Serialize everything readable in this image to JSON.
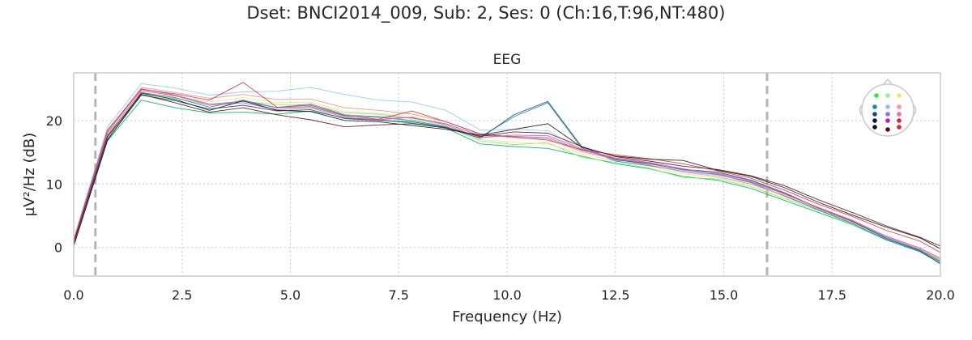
{
  "figure": {
    "suptitle": "Dset: BNCI2014_009, Sub: 2, Ses: 0 (Ch:16,T:96,NT:480)"
  },
  "chart_data": {
    "type": "line",
    "title": "EEG",
    "xlabel": "Frequency (Hz)",
    "ylabel": "µV²/Hz (dB)",
    "xlim": [
      0,
      20
    ],
    "ylim": [
      -4.5,
      27.5
    ],
    "xticks": [
      0,
      2.5,
      5,
      7.5,
      10,
      12.5,
      15,
      17.5,
      20
    ],
    "xtick_labels": [
      "0.0",
      "2.5",
      "5.0",
      "7.5",
      "10.0",
      "12.5",
      "15.0",
      "17.5",
      "20.0"
    ],
    "yticks": [
      0,
      10,
      20
    ],
    "ytick_labels": [
      "0",
      "10",
      "20"
    ],
    "grid": true,
    "vlines": [
      0.5,
      16
    ],
    "legend": "sensor-location inset, top-right",
    "x": [
      0,
      0.78,
      1.56,
      2.34,
      3.13,
      3.91,
      4.69,
      5.47,
      6.25,
      7.03,
      7.81,
      8.59,
      9.38,
      10.16,
      10.94,
      11.72,
      12.5,
      13.28,
      14.06,
      14.84,
      15.63,
      16.41,
      17.19,
      17.97,
      18.75,
      19.53,
      20
    ],
    "series": [
      {
        "color": "#00b050",
        "values": [
          0.3,
          16.8,
          23.2,
          22.0,
          21.2,
          21.3,
          21.0,
          21.5,
          20.4,
          20.1,
          19.6,
          18.8,
          16.3,
          15.9,
          15.6,
          14.4,
          13.2,
          12.4,
          11.2,
          10.6,
          9.3,
          7.4,
          5.5,
          3.6,
          1.2,
          -0.6,
          -2.3
        ]
      },
      {
        "color": "#7ae87a",
        "values": [
          0.9,
          17.6,
          24.1,
          23.5,
          22.4,
          23.0,
          22.5,
          22.5,
          21.2,
          21.0,
          20.3,
          19.1,
          16.8,
          16.2,
          16.5,
          14.2,
          13.4,
          12.5,
          11.0,
          10.8,
          9.6,
          7.7,
          5.8,
          3.7,
          1.3,
          -0.4,
          -2.1
        ]
      },
      {
        "color": "#e8e86a",
        "values": [
          1.2,
          17.9,
          24.3,
          23.8,
          22.9,
          23.6,
          22.8,
          22.9,
          21.4,
          21.1,
          20.6,
          19.4,
          17.0,
          16.6,
          16.3,
          14.8,
          13.6,
          12.8,
          11.6,
          11.0,
          9.9,
          8.0,
          6.0,
          3.9,
          1.5,
          -0.2,
          -1.9
        ]
      },
      {
        "color": "#1a8aa0",
        "values": [
          0.6,
          17.3,
          24.4,
          23.6,
          22.1,
          23.2,
          22.0,
          22.2,
          20.7,
          20.5,
          20.0,
          19.0,
          17.4,
          20.6,
          22.8,
          15.7,
          13.6,
          12.9,
          12.0,
          11.5,
          10.2,
          8.1,
          5.9,
          3.8,
          1.2,
          -0.7,
          -2.5
        ]
      },
      {
        "color": "#8fc8f0",
        "values": [
          1.4,
          19.0,
          25.8,
          25.1,
          24.0,
          24.5,
          24.6,
          25.2,
          24.1,
          23.2,
          22.9,
          21.6,
          18.5,
          18.6,
          18.4,
          15.4,
          14.0,
          13.2,
          12.0,
          11.4,
          10.4,
          8.4,
          6.3,
          4.1,
          1.7,
          -0.1,
          -1.8
        ]
      },
      {
        "color": "#f08c8c",
        "values": [
          1.0,
          18.3,
          25.2,
          24.4,
          23.5,
          24.1,
          23.3,
          23.4,
          22.0,
          21.6,
          21.0,
          19.8,
          17.8,
          17.3,
          17.1,
          15.1,
          13.9,
          13.0,
          11.9,
          11.2,
          10.0,
          8.2,
          6.1,
          4.0,
          1.6,
          -0.3,
          -2.0
        ]
      },
      {
        "color": "#154a80",
        "values": [
          0.5,
          17.0,
          24.0,
          23.1,
          21.8,
          22.4,
          21.5,
          21.7,
          20.3,
          20.0,
          19.8,
          18.9,
          17.2,
          20.9,
          23.0,
          15.9,
          13.8,
          13.2,
          12.3,
          11.9,
          10.6,
          8.6,
          6.2,
          4.1,
          1.4,
          -0.5,
          -2.6
        ]
      },
      {
        "color": "#7c6ae0",
        "values": [
          0.8,
          18.1,
          25.0,
          24.0,
          22.6,
          23.0,
          22.0,
          22.6,
          20.9,
          20.6,
          20.4,
          19.5,
          17.6,
          17.5,
          17.3,
          15.3,
          14.0,
          13.3,
          12.2,
          11.7,
          10.5,
          8.5,
          6.2,
          4.2,
          1.6,
          -0.4,
          -2.2
        ]
      },
      {
        "color": "#f04a90",
        "values": [
          0.4,
          17.7,
          24.7,
          23.9,
          22.4,
          22.8,
          21.7,
          22.0,
          20.5,
          20.1,
          20.5,
          19.3,
          17.3,
          17.7,
          17.6,
          15.5,
          14.1,
          13.4,
          12.4,
          11.6,
          10.3,
          8.4,
          6.3,
          4.3,
          1.8,
          -0.1,
          -1.7
        ]
      },
      {
        "color": "#e03030",
        "values": [
          1.1,
          18.5,
          24.9,
          24.2,
          23.2,
          26.0,
          22.1,
          22.4,
          20.8,
          20.2,
          21.5,
          19.8,
          17.9,
          17.4,
          16.9,
          15.4,
          14.6,
          14.0,
          13.2,
          12.1,
          10.9,
          9.0,
          6.8,
          4.9,
          2.7,
          1.0,
          -0.8
        ]
      },
      {
        "color": "#151515",
        "values": [
          0.2,
          16.9,
          24.3,
          23.3,
          21.6,
          23.1,
          21.6,
          21.4,
          20.0,
          19.8,
          19.2,
          18.6,
          17.7,
          18.6,
          19.5,
          15.8,
          14.4,
          13.9,
          13.7,
          12.2,
          11.2,
          9.4,
          7.1,
          5.1,
          3.2,
          1.5,
          -0.2
        ]
      },
      {
        "color": "#5c0f18",
        "values": [
          0.7,
          17.5,
          24.1,
          22.8,
          21.3,
          22.0,
          20.9,
          20.1,
          19.0,
          19.3,
          19.5,
          18.8,
          17.5,
          18.2,
          18.0,
          15.9,
          14.3,
          13.6,
          12.8,
          12.3,
          11.3,
          9.7,
          7.5,
          5.5,
          3.4,
          1.6,
          0.2
        ]
      }
    ]
  },
  "inset": {
    "sensor_colors": [
      "#33e833",
      "#99f099",
      "#ecec50",
      "#1a8aa0",
      "#8fc0f0",
      "#f09a9a",
      "#154a80",
      "#8a70e8",
      "#f06aa0",
      "#151540",
      "#b020c0",
      "#e02030",
      "#101010",
      "#600818"
    ]
  }
}
